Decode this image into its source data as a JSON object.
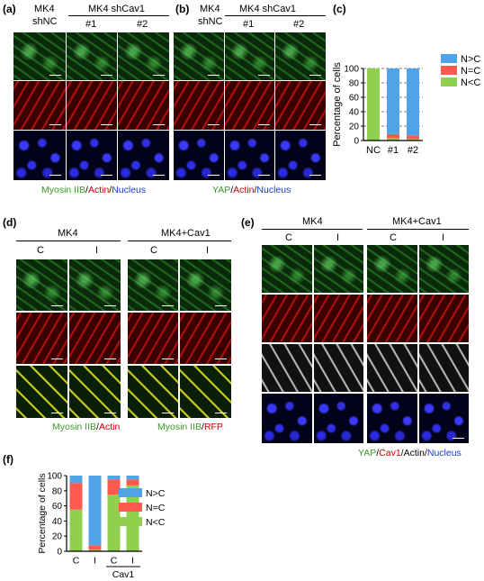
{
  "panels": {
    "a": {
      "label": "(a)",
      "cond_mk4": "MK4",
      "cond_shnc": "shNC",
      "group": "MK4 shCav1",
      "col1": "#1",
      "col2": "#2",
      "cap": {
        "p1": "Myosin IIB",
        "s1": "/",
        "p2": "Actin",
        "s2": "/",
        "p3": "Nucleus"
      },
      "colors": {
        "p1": "#3a9a2a",
        "p2": "#cc0000",
        "p3": "#1a3acc"
      }
    },
    "b": {
      "label": "(b)",
      "cond_mk4": "MK4",
      "cond_shnc": "shNC",
      "group": "MK4 shCav1",
      "col1": "#1",
      "col2": "#2",
      "cap": {
        "p1": "YAP",
        "s1": "/",
        "p2": "Actin",
        "s2": "/",
        "p3": "Nucleus"
      }
    },
    "c": {
      "label": "(c)"
    },
    "d": {
      "label": "(d)",
      "left_group": "MK4",
      "right_group": "MK4+Cav1",
      "cols": [
        "C",
        "I",
        "C",
        "I"
      ],
      "cap_left": {
        "p1": "Myosin IIB",
        "s1": "/",
        "p2": "Actin"
      },
      "cap_right": {
        "p1": "Myosin IIB",
        "s1": "/",
        "p2": "RFP"
      }
    },
    "e": {
      "label": "(e)",
      "left_group": "MK4",
      "right_group": "MK4+Cav1",
      "cols": [
        "C",
        "I",
        "C",
        "I"
      ],
      "cap": {
        "p1": "YAP",
        "s1": "/",
        "p2": "Cav1",
        "s2": "/",
        "p3": "Actin",
        "s3": "/",
        "p4": "Nucleus"
      }
    },
    "f": {
      "label": "(f)"
    }
  },
  "chart_data": [
    {
      "id": "c",
      "type": "bar",
      "stacked": true,
      "categories": [
        "NC",
        "#1",
        "#2"
      ],
      "ylabel": "Percentage of cells",
      "ylim": [
        0,
        100
      ],
      "yticks": [
        0,
        20,
        40,
        60,
        80,
        100
      ],
      "grid": "dashed-horizontal",
      "legend_position": "right",
      "series": [
        {
          "name": "N<C",
          "color": "#8fd14f",
          "values": [
            100,
            3,
            2
          ]
        },
        {
          "name": "N=C",
          "color": "#ff5a4f",
          "values": [
            0,
            6,
            5
          ]
        },
        {
          "name": "N>C",
          "color": "#4fa3e6",
          "values": [
            0,
            91,
            93
          ]
        }
      ]
    },
    {
      "id": "f",
      "type": "bar",
      "stacked": true,
      "categories": [
        "C",
        "I",
        "C",
        "I"
      ],
      "group_label": "Cav1",
      "ylabel": "Percentage of cells",
      "ylim": [
        0,
        100
      ],
      "yticks": [
        0,
        20,
        40,
        60,
        80,
        100
      ],
      "legend_position": "right",
      "series": [
        {
          "name": "N<C",
          "color": "#8fd14f",
          "values": [
            55,
            2,
            75,
            87
          ]
        },
        {
          "name": "N=C",
          "color": "#ff5a4f",
          "values": [
            35,
            6,
            20,
            8
          ]
        },
        {
          "name": "N>C",
          "color": "#4fa3e6",
          "values": [
            10,
            92,
            5,
            5
          ]
        }
      ]
    }
  ]
}
